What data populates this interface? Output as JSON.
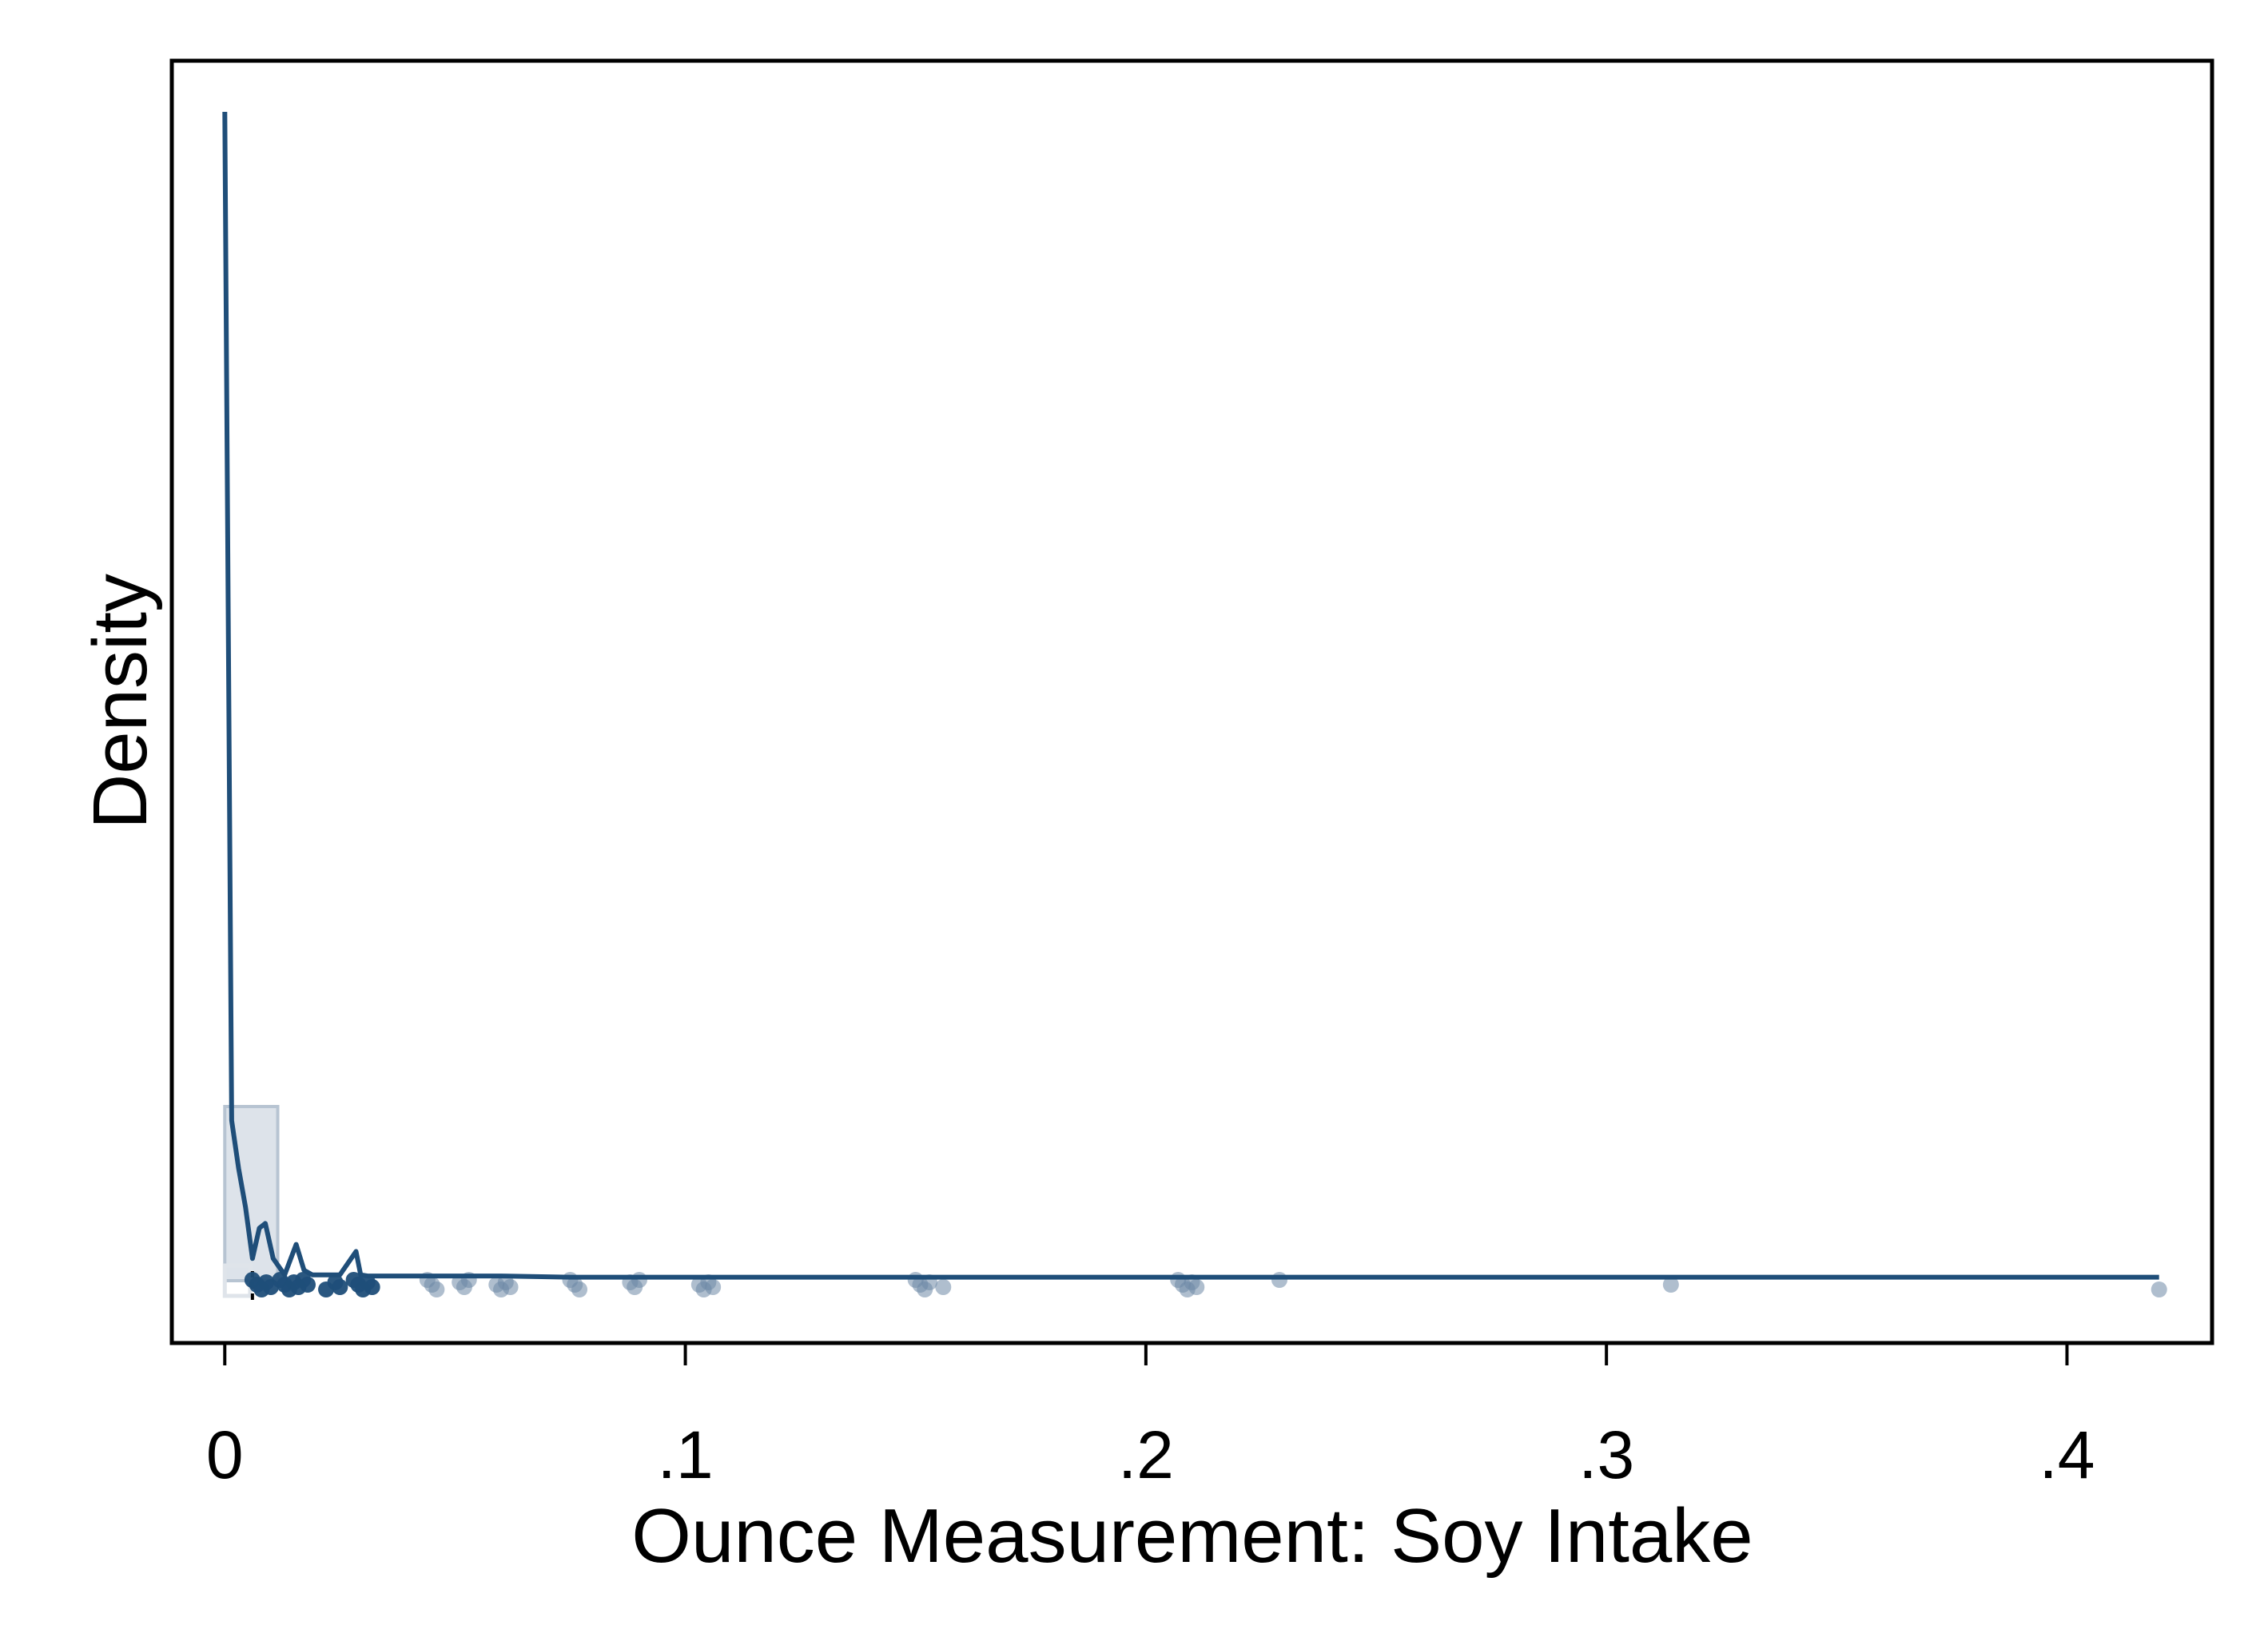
{
  "chart_data": {
    "type": "area",
    "title": "",
    "xlabel": "Ounce Measurement: Soy Intake",
    "ylabel": "Density",
    "xlim": [
      -0.0115,
      0.4315
    ],
    "x_ticks": [
      0,
      0.1,
      0.2,
      0.3,
      0.4
    ],
    "x_tick_labels": [
      "0",
      ".1",
      ".2",
      ".3",
      ".4"
    ],
    "y_ticks_shown": false,
    "grid": false,
    "legend": "none",
    "histogram": {
      "bins": [
        {
          "from": 0.0,
          "to": 0.0115,
          "density_fraction": 0.149
        }
      ]
    },
    "density_curve": {
      "x": [
        0.0,
        0.0015,
        0.003,
        0.0045,
        0.006,
        0.0075,
        0.0088,
        0.0105,
        0.013,
        0.0155,
        0.0172,
        0.019,
        0.025,
        0.0285,
        0.0295,
        0.031,
        0.04,
        0.05,
        0.06,
        0.075,
        0.09,
        0.105,
        0.12,
        0.15,
        0.2,
        0.25,
        0.3,
        0.35,
        0.42
      ],
      "density_fraction": [
        1.0,
        0.137,
        0.096,
        0.063,
        0.019,
        0.045,
        0.049,
        0.019,
        0.005,
        0.031,
        0.009,
        0.005,
        0.005,
        0.025,
        0.005,
        0.004,
        0.004,
        0.004,
        0.004,
        0.003,
        0.003,
        0.003,
        0.003,
        0.003,
        0.003,
        0.003,
        0.003,
        0.003,
        0.003
      ]
    },
    "box": {
      "whisker_low": 0.0,
      "q1": 0.0,
      "median": 0.0,
      "q3": 0.0055,
      "whisker_high": 0.0095,
      "marker": 0.006
    },
    "observations_x": [
      0.006,
      0.007,
      0.008,
      0.009,
      0.01,
      0.012,
      0.013,
      0.014,
      0.015,
      0.016,
      0.017,
      0.018,
      0.022,
      0.024,
      0.025,
      0.028,
      0.029,
      0.03,
      0.031,
      0.032,
      0.044,
      0.045,
      0.046,
      0.051,
      0.052,
      0.053,
      0.059,
      0.06,
      0.061,
      0.062,
      0.075,
      0.076,
      0.077,
      0.088,
      0.089,
      0.09,
      0.103,
      0.104,
      0.105,
      0.106,
      0.15,
      0.151,
      0.152,
      0.153,
      0.156,
      0.207,
      0.208,
      0.209,
      0.21,
      0.211,
      0.229,
      0.314,
      0.42
    ]
  }
}
